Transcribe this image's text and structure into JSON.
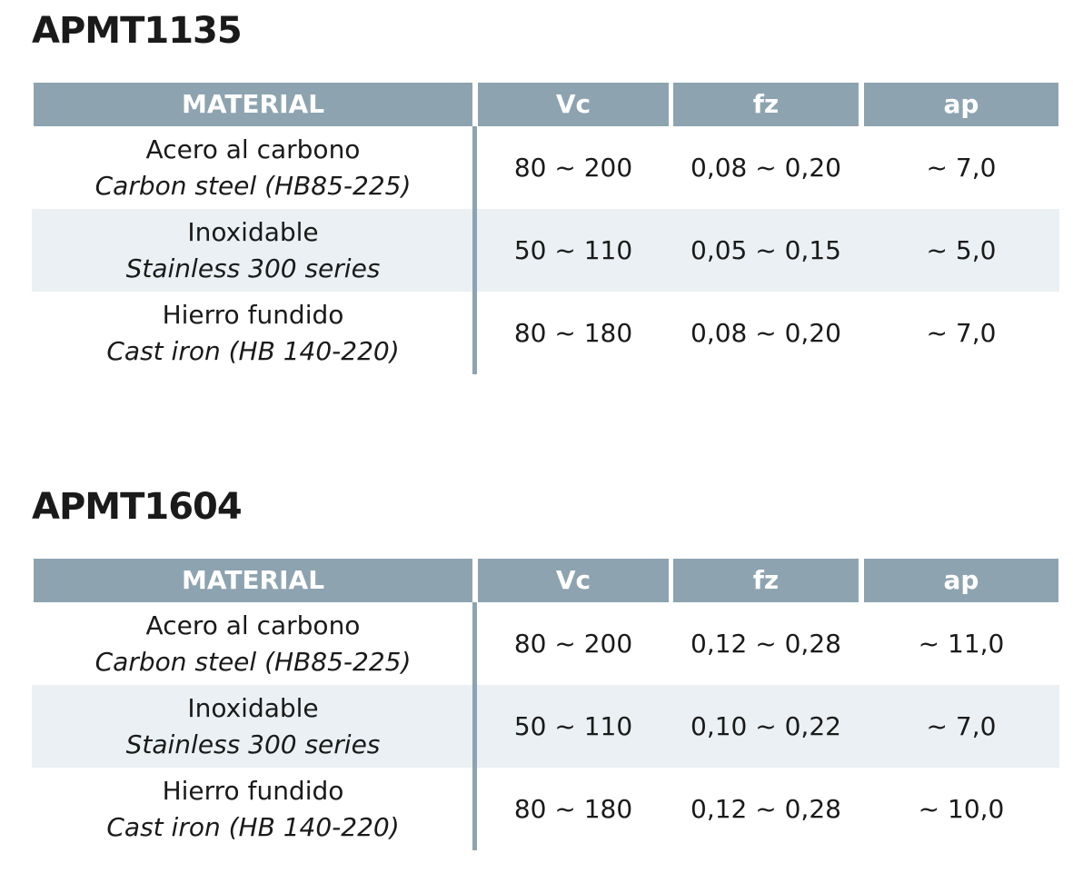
{
  "tables": [
    {
      "title": "APMT1135",
      "headers": {
        "material": "MATERIAL",
        "vc": "Vc",
        "fz": "fz",
        "ap": "ap"
      },
      "rows": [
        {
          "material_es": "Acero al carbono",
          "material_en": "Carbon steel (HB85-225)",
          "vc": "80 ~ 200",
          "fz": "0,08 ~ 0,20",
          "ap": "~ 7,0"
        },
        {
          "material_es": "Inoxidable",
          "material_en": "Stainless 300 series",
          "vc": "50 ~ 110",
          "fz": "0,05 ~ 0,15",
          "ap": "~ 5,0"
        },
        {
          "material_es": "Hierro fundido",
          "material_en": "Cast iron (HB 140-220)",
          "vc": "80 ~ 180",
          "fz": "0,08 ~ 0,20",
          "ap": "~ 7,0"
        }
      ]
    },
    {
      "title": "APMT1604",
      "headers": {
        "material": "MATERIAL",
        "vc": "Vc",
        "fz": "fz",
        "ap": "ap"
      },
      "rows": [
        {
          "material_es": "Acero al carbono",
          "material_en": "Carbon steel (HB85-225)",
          "vc": "80 ~ 200",
          "fz": "0,12 ~ 0,28",
          "ap": "~ 11,0"
        },
        {
          "material_es": "Inoxidable",
          "material_en": "Stainless 300 series",
          "vc": "50 ~ 110",
          "fz": "0,10 ~ 0,22",
          "ap": "~ 7,0"
        },
        {
          "material_es": "Hierro fundido",
          "material_en": "Cast iron (HB 140-220)",
          "vc": "80 ~ 180",
          "fz": "0,12 ~ 0,28",
          "ap": "~ 10,0"
        }
      ]
    }
  ],
  "colors": {
    "header_bg": "#8da3b0",
    "header_text": "#ffffff",
    "shaded_row": "#eaf0f3",
    "text": "#1a1a1a"
  }
}
